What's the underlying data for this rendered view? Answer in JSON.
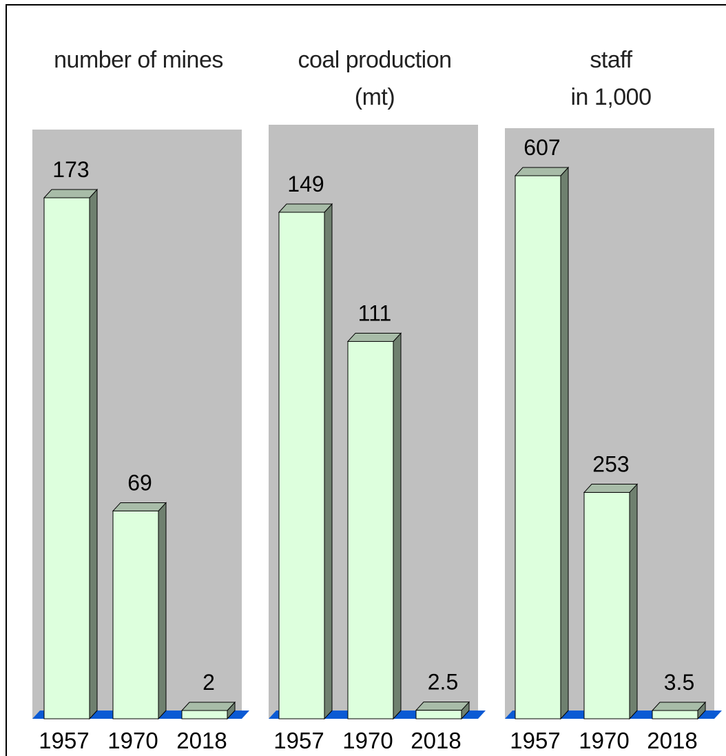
{
  "chart_data": [
    {
      "type": "bar",
      "title": [
        "number of mines"
      ],
      "categories": [
        "1957",
        "1970",
        "2018"
      ],
      "values": [
        173,
        69,
        2
      ],
      "value_labels": [
        "173",
        "69",
        "2"
      ],
      "ylim": [
        0,
        173
      ]
    },
    {
      "type": "bar",
      "title": [
        "coal production",
        "(mt)"
      ],
      "categories": [
        "1957",
        "1970",
        "2018"
      ],
      "values": [
        149,
        111,
        2.5
      ],
      "value_labels": [
        "149",
        "111",
        "2.5"
      ],
      "ylim": [
        0,
        149
      ]
    },
    {
      "type": "bar",
      "title": [
        "staff",
        "in 1,000"
      ],
      "categories": [
        "1957",
        "1970",
        "2018"
      ],
      "values": [
        607,
        253,
        3.5
      ],
      "value_labels": [
        "607",
        "253",
        "3.5"
      ],
      "ylim": [
        0,
        607
      ]
    }
  ],
  "colors": {
    "panel_background": "#c0c0c0",
    "bar_front": "#ddffdd",
    "bar_top": "#a8bca8",
    "bar_side": "#6f806f",
    "floor": "#0a5ad4"
  }
}
